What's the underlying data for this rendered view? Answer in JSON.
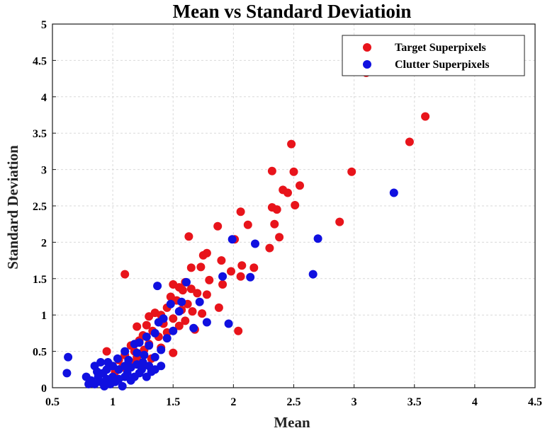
{
  "chart_data": {
    "type": "scatter",
    "title": "Mean vs Standard Deviatioin",
    "xlabel": "Mean",
    "ylabel": "Standard Deviation",
    "xlim": [
      0.5,
      4.5
    ],
    "ylim": [
      0,
      5
    ],
    "xticks": [
      0.5,
      1,
      1.5,
      2,
      2.5,
      3,
      3.5,
      4,
      4.5
    ],
    "yticks": [
      0,
      0.5,
      1,
      1.5,
      2,
      2.5,
      3,
      3.5,
      4,
      4.5,
      5
    ],
    "grid": true,
    "legend": "top-right",
    "colors": {
      "target": "#e8141b",
      "clutter": "#1010e0"
    },
    "series": [
      {
        "name": "Target Superpixels",
        "color": "#e8141b",
        "points": [
          [
            3.1,
            4.33
          ],
          [
            3.59,
            3.73
          ],
          [
            3.46,
            3.38
          ],
          [
            2.48,
            3.35
          ],
          [
            2.98,
            2.97
          ],
          [
            2.32,
            2.98
          ],
          [
            2.5,
            2.97
          ],
          [
            2.55,
            2.78
          ],
          [
            2.41,
            2.72
          ],
          [
            2.45,
            2.68
          ],
          [
            2.32,
            2.48
          ],
          [
            2.36,
            2.45
          ],
          [
            2.51,
            2.51
          ],
          [
            2.88,
            2.28
          ],
          [
            2.34,
            2.25
          ],
          [
            2.06,
            2.42
          ],
          [
            2.12,
            2.24
          ],
          [
            1.87,
            2.22
          ],
          [
            2.38,
            2.07
          ],
          [
            2.3,
            1.92
          ],
          [
            1.63,
            2.08
          ],
          [
            2.01,
            2.04
          ],
          [
            1.78,
            1.85
          ],
          [
            1.75,
            1.82
          ],
          [
            1.65,
            1.65
          ],
          [
            1.73,
            1.66
          ],
          [
            1.9,
            1.75
          ],
          [
            2.07,
            1.68
          ],
          [
            2.17,
            1.65
          ],
          [
            1.98,
            1.6
          ],
          [
            2.06,
            1.53
          ],
          [
            1.1,
            1.56
          ],
          [
            1.8,
            1.48
          ],
          [
            1.91,
            1.42
          ],
          [
            1.6,
            1.45
          ],
          [
            1.5,
            1.42
          ],
          [
            1.55,
            1.38
          ],
          [
            1.58,
            1.34
          ],
          [
            1.65,
            1.36
          ],
          [
            1.7,
            1.3
          ],
          [
            1.78,
            1.28
          ],
          [
            1.48,
            1.25
          ],
          [
            1.53,
            1.2
          ],
          [
            1.62,
            1.15
          ],
          [
            1.45,
            1.1
          ],
          [
            1.57,
            1.07
          ],
          [
            1.66,
            1.05
          ],
          [
            1.74,
            1.02
          ],
          [
            1.88,
            1.1
          ],
          [
            1.35,
            1.03
          ],
          [
            1.4,
            1.0
          ],
          [
            1.3,
            0.98
          ],
          [
            1.5,
            0.95
          ],
          [
            1.6,
            0.92
          ],
          [
            1.42,
            0.88
          ],
          [
            1.55,
            0.85
          ],
          [
            1.28,
            0.86
          ],
          [
            1.2,
            0.84
          ],
          [
            1.68,
            0.8
          ],
          [
            1.33,
            0.78
          ],
          [
            1.45,
            0.76
          ],
          [
            1.25,
            0.72
          ],
          [
            1.38,
            0.7
          ],
          [
            2.04,
            0.78
          ],
          [
            1.22,
            0.65
          ],
          [
            1.3,
            0.6
          ],
          [
            1.15,
            0.58
          ],
          [
            1.4,
            0.55
          ],
          [
            1.18,
            0.5
          ],
          [
            1.26,
            0.52
          ],
          [
            1.5,
            0.48
          ],
          [
            1.1,
            0.45
          ],
          [
            1.2,
            0.42
          ],
          [
            1.32,
            0.4
          ],
          [
            0.95,
            0.5
          ],
          [
            1.05,
            0.38
          ],
          [
            1.15,
            0.35
          ],
          [
            0.98,
            0.3
          ],
          [
            1.08,
            0.28
          ],
          [
            1.25,
            0.3
          ],
          [
            1.02,
            0.22
          ]
        ]
      },
      {
        "name": "Clutter Superpixels",
        "color": "#1010e0",
        "points": [
          [
            3.33,
            2.68
          ],
          [
            2.7,
            2.05
          ],
          [
            2.66,
            1.56
          ],
          [
            2.18,
            1.98
          ],
          [
            1.99,
            2.04
          ],
          [
            2.14,
            1.52
          ],
          [
            1.91,
            1.53
          ],
          [
            1.37,
            1.4
          ],
          [
            1.61,
            1.45
          ],
          [
            1.57,
            1.18
          ],
          [
            1.72,
            1.18
          ],
          [
            1.48,
            1.15
          ],
          [
            1.55,
            1.05
          ],
          [
            1.78,
            0.9
          ],
          [
            1.96,
            0.88
          ],
          [
            1.67,
            0.82
          ],
          [
            1.42,
            0.95
          ],
          [
            1.38,
            0.9
          ],
          [
            1.5,
            0.78
          ],
          [
            1.35,
            0.75
          ],
          [
            1.28,
            0.7
          ],
          [
            1.45,
            0.68
          ],
          [
            1.22,
            0.62
          ],
          [
            1.18,
            0.6
          ],
          [
            1.3,
            0.58
          ],
          [
            1.4,
            0.52
          ],
          [
            1.1,
            0.5
          ],
          [
            1.2,
            0.48
          ],
          [
            1.26,
            0.45
          ],
          [
            1.35,
            0.42
          ],
          [
            0.63,
            0.42
          ],
          [
            0.62,
            0.2
          ],
          [
            0.85,
            0.3
          ],
          [
            0.9,
            0.35
          ],
          [
            0.95,
            0.25
          ],
          [
            1.0,
            0.3
          ],
          [
            1.05,
            0.25
          ],
          [
            1.1,
            0.3
          ],
          [
            1.15,
            0.28
          ],
          [
            1.2,
            0.32
          ],
          [
            1.25,
            0.35
          ],
          [
            1.3,
            0.3
          ],
          [
            1.35,
            0.25
          ],
          [
            0.78,
            0.15
          ],
          [
            0.82,
            0.1
          ],
          [
            0.85,
            0.05
          ],
          [
            0.88,
            0.15
          ],
          [
            0.9,
            0.08
          ],
          [
            0.92,
            0.2
          ],
          [
            0.95,
            0.12
          ],
          [
            0.98,
            0.05
          ],
          [
            1.0,
            0.15
          ],
          [
            1.02,
            0.08
          ],
          [
            1.05,
            0.12
          ],
          [
            1.08,
            0.02
          ],
          [
            1.1,
            0.15
          ],
          [
            1.12,
            0.2
          ],
          [
            1.15,
            0.1
          ],
          [
            1.18,
            0.15
          ],
          [
            1.22,
            0.2
          ],
          [
            1.28,
            0.15
          ],
          [
            1.32,
            0.22
          ],
          [
            1.4,
            0.3
          ],
          [
            0.8,
            0.05
          ],
          [
            0.87,
            0.22
          ],
          [
            0.96,
            0.35
          ],
          [
            1.04,
            0.4
          ],
          [
            1.13,
            0.38
          ],
          [
            1.24,
            0.25
          ],
          [
            0.93,
            0.02
          ]
        ]
      }
    ]
  }
}
